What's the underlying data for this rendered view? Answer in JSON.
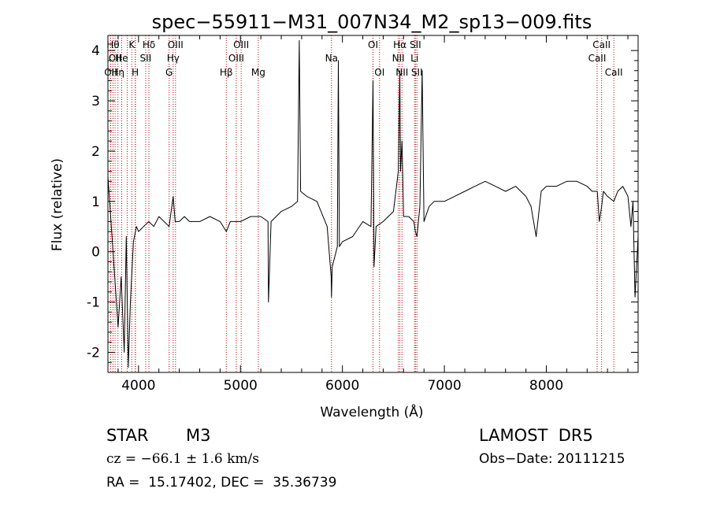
{
  "chart_data": {
    "type": "line",
    "title": "spec−55911−M31_007N34_M2_sp13−009.fits",
    "xlabel": "Wavelength (Å)",
    "ylabel": "Flux (relative)",
    "xlim": [
      3700,
      8900
    ],
    "ylim": [
      -2.4,
      4.3
    ],
    "x_ticks": [
      4000,
      5000,
      6000,
      7000,
      8000
    ],
    "y_ticks": [
      -2,
      -1,
      0,
      1,
      2,
      3,
      4
    ],
    "grid": false,
    "line_color": "#000000",
    "marker_color": "#cc0000",
    "series": [
      {
        "x": [
          3700,
          3750,
          3800,
          3830,
          3860,
          3880,
          3900,
          3920,
          3950,
          3980,
          4000,
          4050,
          4100,
          4150,
          4200,
          4250,
          4300,
          4340,
          4360,
          4400,
          4450,
          4500,
          4600,
          4700,
          4800,
          4861,
          4900,
          5000,
          5100,
          5200,
          5270,
          5275,
          5300,
          5400,
          5500,
          5560,
          5577,
          5590,
          5650,
          5750,
          5850,
          5890,
          5893,
          5900,
          5950,
          5960,
          5970,
          6000,
          6100,
          6200,
          6280,
          6300,
          6310,
          6330,
          6400,
          6500,
          6530,
          6548,
          6563,
          6570,
          6584,
          6600,
          6650,
          6700,
          6716,
          6731,
          6760,
          6782,
          6800,
          6850,
          6900,
          7000,
          7100,
          7200,
          7300,
          7400,
          7500,
          7600,
          7700,
          7800,
          7850,
          7900,
          7950,
          8000,
          8100,
          8200,
          8300,
          8400,
          8450,
          8500,
          8520,
          8542,
          8560,
          8600,
          8662,
          8700,
          8750,
          8800,
          8830,
          8850,
          8870,
          8900
        ],
        "y": [
          1.5,
          0.0,
          -1.5,
          -0.5,
          -2.0,
          0.3,
          -2.3,
          -1.0,
          0.2,
          0.5,
          0.4,
          0.5,
          0.6,
          0.5,
          0.7,
          0.6,
          0.5,
          1.1,
          0.6,
          0.6,
          0.7,
          0.6,
          0.6,
          0.7,
          0.6,
          0.4,
          0.6,
          0.6,
          0.7,
          0.7,
          0.6,
          -1.0,
          0.6,
          0.8,
          0.9,
          1.0,
          4.2,
          1.2,
          1.1,
          1.0,
          0.5,
          -0.5,
          -0.9,
          -0.3,
          0.1,
          3.8,
          0.1,
          0.2,
          0.3,
          0.6,
          0.5,
          3.4,
          -0.3,
          0.5,
          0.6,
          0.8,
          1.3,
          1.6,
          3.6,
          1.6,
          2.2,
          0.7,
          0.7,
          0.6,
          0.4,
          0.3,
          0.9,
          3.6,
          0.6,
          0.9,
          1.0,
          1.0,
          1.1,
          1.2,
          1.3,
          1.4,
          1.3,
          1.2,
          1.3,
          1.1,
          0.9,
          0.3,
          1.2,
          1.3,
          1.3,
          1.4,
          1.4,
          1.3,
          1.2,
          1.2,
          0.6,
          0.9,
          1.2,
          1.1,
          1.0,
          1.2,
          1.3,
          1.1,
          0.5,
          1.0,
          -0.9,
          0.3
        ]
      }
    ],
    "line_markers": [
      {
        "wl": 3727,
        "label": "OII",
        "row": 2
      },
      {
        "wl": 3750,
        "label": "Hθ",
        "row": 0
      },
      {
        "wl": 3770,
        "label": "OII",
        "row": 1
      },
      {
        "wl": 3798,
        "label": "Hη",
        "row": 2
      },
      {
        "wl": 3835,
        "label": "He",
        "row": 1
      },
      {
        "wl": 3889,
        "label": "",
        "row": 1
      },
      {
        "wl": 3934,
        "label": "K",
        "row": 0
      },
      {
        "wl": 3968,
        "label": "H",
        "row": 2
      },
      {
        "wl": 3970,
        "label": "",
        "row": 1
      },
      {
        "wl": 4070,
        "label": "SII",
        "row": 1
      },
      {
        "wl": 4102,
        "label": "Hδ",
        "row": 0
      },
      {
        "wl": 4300,
        "label": "G",
        "row": 2
      },
      {
        "wl": 4340,
        "label": "Hγ",
        "row": 1
      },
      {
        "wl": 4363,
        "label": "OIII",
        "row": 0
      },
      {
        "wl": 4861,
        "label": "Hβ",
        "row": 2
      },
      {
        "wl": 4959,
        "label": "OIII",
        "row": 1
      },
      {
        "wl": 5007,
        "label": "OIII",
        "row": 0
      },
      {
        "wl": 5175,
        "label": "Mg",
        "row": 2
      },
      {
        "wl": 5893,
        "label": "Na",
        "row": 1
      },
      {
        "wl": 6300,
        "label": "OI",
        "row": 0
      },
      {
        "wl": 6364,
        "label": "OI",
        "row": 2
      },
      {
        "wl": 6548,
        "label": "NII",
        "row": 1
      },
      {
        "wl": 6563,
        "label": "Hα",
        "row": 0
      },
      {
        "wl": 6584,
        "label": "NII",
        "row": 2
      },
      {
        "wl": 6707,
        "label": "Li",
        "row": 1
      },
      {
        "wl": 6716,
        "label": "SII",
        "row": 0
      },
      {
        "wl": 6731,
        "label": "SII",
        "row": 2
      },
      {
        "wl": 8498,
        "label": "CaII",
        "row": 1
      },
      {
        "wl": 8542,
        "label": "CaII",
        "row": 0
      },
      {
        "wl": 8662,
        "label": "CaII",
        "row": 2
      }
    ]
  },
  "info": {
    "object_class": "STAR",
    "subclass": "M3",
    "survey": "LAMOST  DR5",
    "velocity": "cz = −66.1 ± 1.6 km/s",
    "obs_date": "Obs−Date: 20111215",
    "coords": "RA =  15.17402, DEC =  35.36739"
  }
}
